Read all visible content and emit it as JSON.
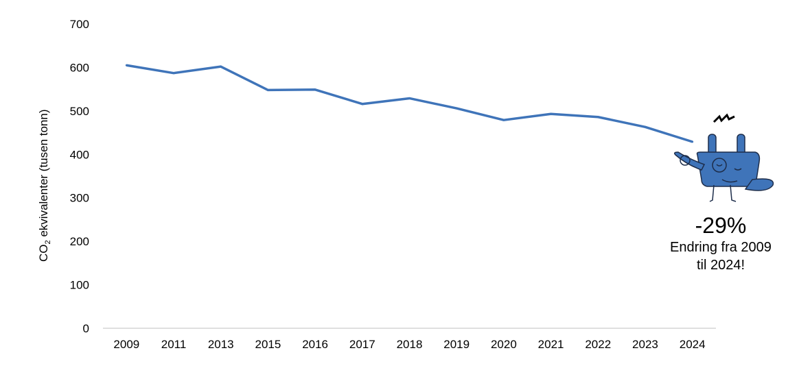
{
  "chart_data": {
    "type": "line",
    "categories": [
      "2009",
      "2011",
      "2013",
      "2015",
      "2016",
      "2017",
      "2018",
      "2019",
      "2020",
      "2021",
      "2022",
      "2023",
      "2024"
    ],
    "series": [
      {
        "values": [
          605,
          587,
          602,
          548,
          549,
          516,
          529,
          506,
          479,
          493,
          486,
          463,
          429
        ]
      }
    ],
    "ylabel_main": "CO",
    "ylabel_sub": "2",
    "ylabel_rest": " ekvivalenter (tusen tonn)",
    "ylim": [
      0,
      700
    ],
    "yticks": [
      0,
      100,
      200,
      300,
      400,
      500,
      600,
      700
    ],
    "grid": false,
    "line_color": "#3f74b9"
  },
  "annotation": {
    "percent": "-29%",
    "line1": "Endring fra 2009",
    "line2": "til 2024!"
  },
  "mascot": {
    "icon": "plug-mascot-icon",
    "color": "#3f74b9"
  }
}
